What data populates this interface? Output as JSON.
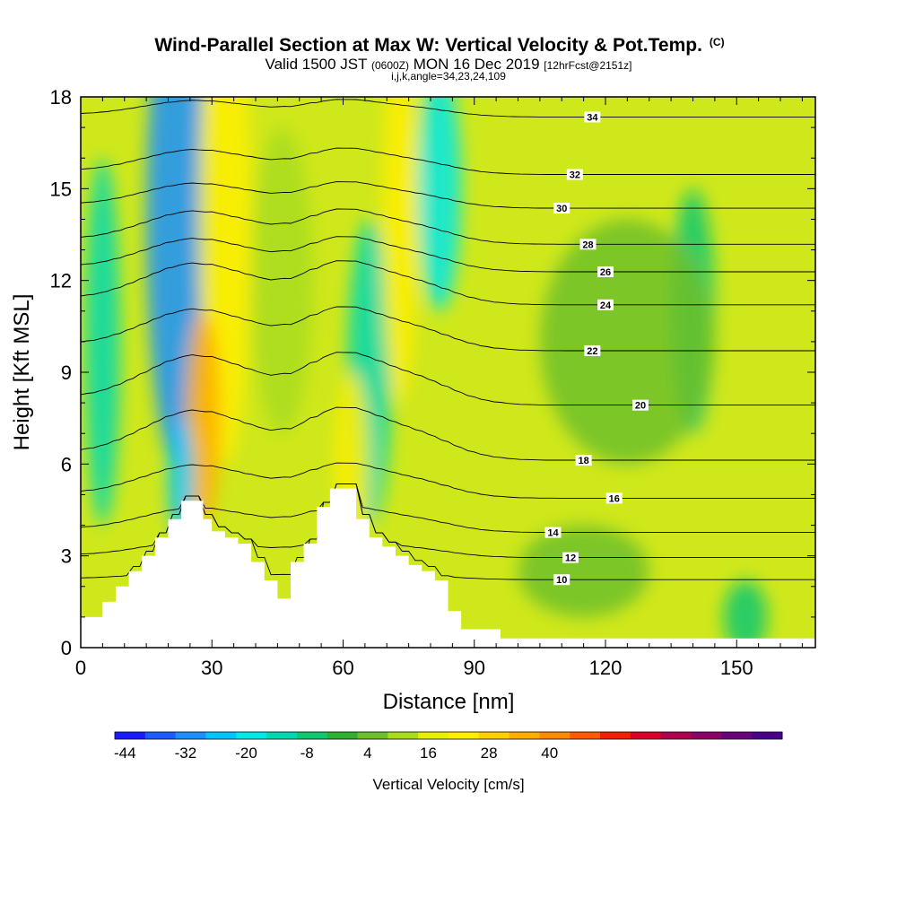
{
  "title": {
    "main": "Wind-Parallel Section at Max W: Vertical Velocity & Pot.Temp.",
    "copyright": "(C)",
    "valid_prefix": "Valid 1500 JST",
    "valid_z": "(0600Z)",
    "valid_date": "MON 16 Dec 2019",
    "forecast": "[12hrFcst@2151z]",
    "params": "i,j,k,angle=34,23,24,109"
  },
  "chart_data": {
    "type": "heatmap",
    "xlabel": "Distance [nm]",
    "ylabel": "Height [Kft MSL]",
    "xlim": [
      0,
      168
    ],
    "ylim": [
      0,
      18
    ],
    "xticks": [
      0,
      30,
      60,
      90,
      120,
      150
    ],
    "yticks": [
      0,
      3,
      6,
      9,
      12,
      15,
      18
    ],
    "colorbar": {
      "label": "Vertical Velocity [cm/s]",
      "min": -46,
      "step": 6,
      "ticks": [
        -44,
        -32,
        -20,
        -8,
        4,
        16,
        28,
        40
      ],
      "colors": [
        "#1a1aff",
        "#1a5cff",
        "#1a90ff",
        "#00c4ff",
        "#00e8e8",
        "#00d8b0",
        "#10c870",
        "#30b030",
        "#6ec02a",
        "#a8dc1e",
        "#e6f000",
        "#ffee00",
        "#ffd000",
        "#ffae00",
        "#ff8a00",
        "#ff5a00",
        "#f02000",
        "#d8002a",
        "#b00050",
        "#8c0068",
        "#6a007a",
        "#4a008c"
      ]
    },
    "terrain": {
      "x": [
        0,
        3,
        5,
        8,
        11,
        14,
        17,
        20,
        23,
        25,
        28,
        30,
        33,
        36,
        39,
        42,
        45,
        48,
        51,
        54,
        57,
        60,
        63,
        66,
        69,
        72,
        75,
        78,
        81,
        84,
        87,
        91,
        96,
        100,
        168
      ],
      "height": [
        1.0,
        1.0,
        1.5,
        2.0,
        2.5,
        3.0,
        3.6,
        4.2,
        4.8,
        4.8,
        4.2,
        3.8,
        3.6,
        3.4,
        2.8,
        2.2,
        1.6,
        2.8,
        3.4,
        4.6,
        5.2,
        5.2,
        4.2,
        3.6,
        3.3,
        3.0,
        2.7,
        2.5,
        2.2,
        1.2,
        0.6,
        0.6,
        0.3,
        0.3,
        0.3
      ]
    },
    "velocity_features": [
      {
        "x": 22,
        "height": 14,
        "x_width": 7,
        "height_width": 8,
        "value": -30
      },
      {
        "x": 33,
        "height": 14,
        "x_width": 6,
        "height_width": 8,
        "value": 20
      },
      {
        "x": 28,
        "height": 7.5,
        "x_width": 4,
        "height_width": 3.5,
        "value": 36
      },
      {
        "x": 23,
        "height": 5.5,
        "x_width": 3,
        "height_width": 2,
        "value": -24
      },
      {
        "x": 5,
        "height": 10,
        "x_width": 4,
        "height_width": 6,
        "value": -14
      },
      {
        "x": 46,
        "height": 12,
        "x_width": 7,
        "height_width": 5,
        "value": 8
      },
      {
        "x": 66,
        "height": 9,
        "x_width": 5,
        "height_width": 5,
        "value": -16
      },
      {
        "x": 62,
        "height": 6,
        "x_width": 4,
        "height_width": 3,
        "value": 22
      },
      {
        "x": 73,
        "height": 14,
        "x_width": 4,
        "height_width": 6,
        "value": 24
      },
      {
        "x": 82,
        "height": 15,
        "x_width": 5,
        "height_width": 4,
        "value": -20
      },
      {
        "x": 140,
        "height": 11,
        "x_width": 5,
        "height_width": 4,
        "value": -8
      },
      {
        "x": 152,
        "height": 1,
        "x_width": 5,
        "height_width": 1.2,
        "value": -10
      },
      {
        "x": 115,
        "height": 2.5,
        "x_width": 15,
        "height_width": 1.5,
        "value": 4
      },
      {
        "x": 125,
        "height": 10,
        "x_width": 20,
        "height_width": 4,
        "value": 2
      }
    ],
    "theta_contours": [
      {
        "value": 10,
        "base_height": 2.2,
        "bump": 0.05,
        "label": "10",
        "label_x": 110
      },
      {
        "value": 12,
        "base_height": 2.9,
        "bump": 0.1,
        "label": "12",
        "label_x": 112
      },
      {
        "value": 14,
        "base_height": 3.7,
        "bump": 0.15,
        "label": "14",
        "label_x": 108
      },
      {
        "value": 16,
        "base_height": 4.8,
        "bump": 0.2,
        "label": "16",
        "label_x": 122
      },
      {
        "value": 18,
        "base_height": 6.0,
        "bump": 0.3,
        "label": "18",
        "label_x": 115
      },
      {
        "value": 20,
        "base_height": 7.8,
        "bump": 0.3,
        "label": "20",
        "label_x": 128
      },
      {
        "value": 22,
        "base_height": 9.6,
        "bump": 0.25,
        "label": "22",
        "label_x": 117
      },
      {
        "value": 24,
        "base_height": 11.1,
        "bump": 0.25,
        "label": "24",
        "label_x": 120
      },
      {
        "value": 26,
        "base_height": 12.2,
        "bump": 0.2,
        "label": "26",
        "label_x": 120
      },
      {
        "value": 28,
        "base_height": 13.1,
        "bump": 0.2,
        "label": "28",
        "label_x": 116
      },
      {
        "value": 30,
        "base_height": 14.3,
        "bump": 0.15,
        "label": "30",
        "label_x": 110
      },
      {
        "value": 32,
        "base_height": 15.4,
        "bump": 0.15,
        "label": "32",
        "label_x": 113
      },
      {
        "value": 34,
        "base_height": 17.3,
        "bump": 0.1,
        "label": "34",
        "label_x": 117
      }
    ]
  }
}
